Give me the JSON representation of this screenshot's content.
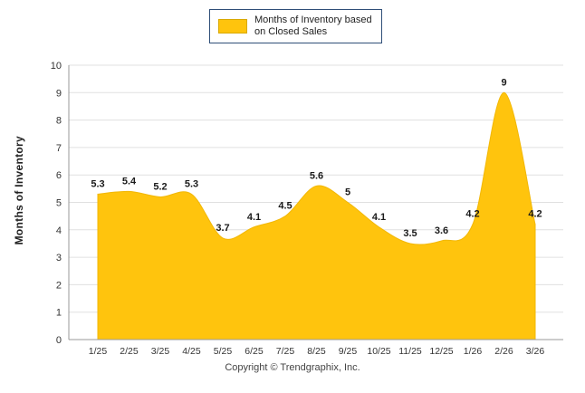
{
  "legend": {
    "label_line1": "Months of Inventory based",
    "label_line2": "on Closed Sales"
  },
  "ylabel": "Months of Inventory",
  "footer": {
    "copyright": "Copyright © Trendgraphix, Inc."
  },
  "colors": {
    "area": "#FFC40D",
    "area_edge": "#F2B705",
    "grid": "#E0E0E0",
    "axis": "#999999",
    "text": "#333333",
    "data_label": "#1A1A1A",
    "legend_border": "#2F4E78"
  },
  "chart_data": {
    "type": "area",
    "series_name": "Months of Inventory based on Closed Sales",
    "categories": [
      "1/25",
      "2/25",
      "3/25",
      "4/25",
      "5/25",
      "6/25",
      "7/25",
      "8/25",
      "9/25",
      "10/25",
      "11/25",
      "12/25",
      "1/26",
      "2/26",
      "3/26"
    ],
    "values": [
      5.3,
      5.4,
      5.2,
      5.3,
      3.7,
      4.1,
      4.5,
      5.6,
      5,
      4.1,
      3.5,
      3.6,
      4.2,
      9,
      4.2
    ],
    "title": "",
    "xlabel": "",
    "ylabel": "Months of Inventory",
    "ylim": [
      0,
      10
    ],
    "yticks": [
      0,
      1,
      2,
      3,
      4,
      5,
      6,
      7,
      8,
      9,
      10
    ],
    "grid": true,
    "legend_position": "top"
  }
}
